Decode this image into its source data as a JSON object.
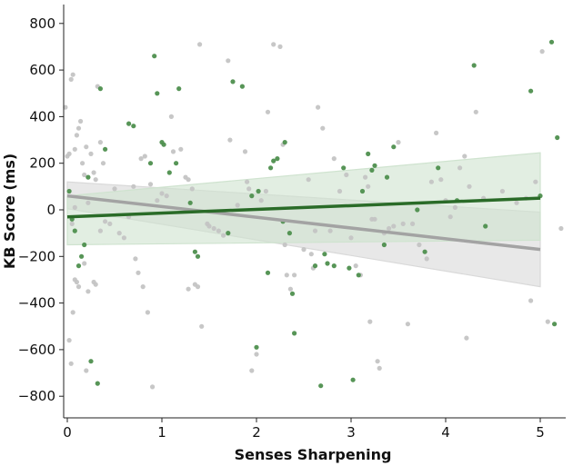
{
  "chart_data": {
    "type": "scatter",
    "title": "",
    "xlabel": "Senses Sharpening",
    "ylabel": "KB Score (ms)",
    "xlim": [
      -0.05,
      5.25
    ],
    "ylim": [
      -880,
      880
    ],
    "x_ticks": [
      0,
      1,
      2,
      3,
      4,
      5
    ],
    "y_ticks": [
      -800,
      -600,
      -400,
      -200,
      0,
      200,
      400,
      600,
      800
    ],
    "grid": false,
    "legend": "none",
    "series": [
      {
        "color": "#4e8f4e",
        "fit": {
          "x": [
            0,
            5
          ],
          "y": [
            -30,
            50
          ],
          "color": "#2a6b28",
          "ci_upper": [
            60,
            245
          ],
          "ci_lower": [
            -150,
            -130
          ],
          "band_color": "#cfe3cf"
        },
        "points": [
          [
            0.02,
            80
          ],
          [
            0.05,
            -40
          ],
          [
            0.08,
            -90
          ],
          [
            0.12,
            -240
          ],
          [
            0.15,
            -200
          ],
          [
            0.18,
            -150
          ],
          [
            0.22,
            140
          ],
          [
            0.25,
            -650
          ],
          [
            0.32,
            -745
          ],
          [
            0.35,
            520
          ],
          [
            0.4,
            260
          ],
          [
            0.65,
            370
          ],
          [
            0.7,
            360
          ],
          [
            0.88,
            200
          ],
          [
            0.92,
            660
          ],
          [
            0.95,
            500
          ],
          [
            1.0,
            290
          ],
          [
            1.02,
            280
          ],
          [
            1.08,
            160
          ],
          [
            1.15,
            200
          ],
          [
            1.18,
            520
          ],
          [
            1.3,
            30
          ],
          [
            1.35,
            -180
          ],
          [
            1.38,
            -200
          ],
          [
            1.7,
            -100
          ],
          [
            1.75,
            550
          ],
          [
            1.85,
            530
          ],
          [
            1.95,
            60
          ],
          [
            2.0,
            -590
          ],
          [
            2.02,
            80
          ],
          [
            2.12,
            -270
          ],
          [
            2.15,
            180
          ],
          [
            2.18,
            210
          ],
          [
            2.22,
            220
          ],
          [
            2.28,
            -50
          ],
          [
            2.3,
            290
          ],
          [
            2.35,
            -100
          ],
          [
            2.38,
            -360
          ],
          [
            2.4,
            -530
          ],
          [
            2.62,
            -240
          ],
          [
            2.68,
            -755
          ],
          [
            2.72,
            -190
          ],
          [
            2.75,
            -230
          ],
          [
            2.82,
            -240
          ],
          [
            2.92,
            180
          ],
          [
            2.98,
            -250
          ],
          [
            3.02,
            -730
          ],
          [
            3.08,
            -280
          ],
          [
            3.12,
            80
          ],
          [
            3.18,
            240
          ],
          [
            3.22,
            170
          ],
          [
            3.25,
            190
          ],
          [
            3.35,
            -150
          ],
          [
            3.38,
            140
          ],
          [
            3.45,
            270
          ],
          [
            3.7,
            0
          ],
          [
            3.78,
            -180
          ],
          [
            3.92,
            180
          ],
          [
            4.12,
            40
          ],
          [
            4.3,
            620
          ],
          [
            4.42,
            -70
          ],
          [
            4.9,
            510
          ],
          [
            5.12,
            720
          ],
          [
            5.18,
            310
          ],
          [
            5.15,
            -490
          ],
          [
            5.0,
            60
          ]
        ]
      },
      {
        "color": "#c4c4c4",
        "fit": {
          "x": [
            0,
            5
          ],
          "y": [
            60,
            -170
          ],
          "color": "#a3a3a3",
          "ci_upper": [
            120,
            -10
          ],
          "ci_lower": [
            5,
            -330
          ],
          "band_color": "#d9d9d9"
        },
        "points": [
          [
            -0.02,
            440
          ],
          [
            0.0,
            230
          ],
          [
            0.02,
            240
          ],
          [
            0.04,
            560
          ],
          [
            0.06,
            580
          ],
          [
            0.08,
            260
          ],
          [
            0.1,
            320
          ],
          [
            0.12,
            350
          ],
          [
            0.02,
            -560
          ],
          [
            0.04,
            -660
          ],
          [
            0.06,
            -440
          ],
          [
            0.08,
            -300
          ],
          [
            0.1,
            -310
          ],
          [
            0.12,
            -330
          ],
          [
            0.05,
            -60
          ],
          [
            0.08,
            10
          ],
          [
            0.14,
            380
          ],
          [
            0.16,
            200
          ],
          [
            0.18,
            150
          ],
          [
            0.2,
            270
          ],
          [
            0.22,
            30
          ],
          [
            0.25,
            240
          ],
          [
            0.28,
            160
          ],
          [
            0.3,
            130
          ],
          [
            0.32,
            530
          ],
          [
            0.35,
            290
          ],
          [
            0.38,
            200
          ],
          [
            0.2,
            -690
          ],
          [
            0.18,
            -230
          ],
          [
            0.22,
            -350
          ],
          [
            0.28,
            -310
          ],
          [
            0.3,
            -320
          ],
          [
            0.35,
            -90
          ],
          [
            0.4,
            -50
          ],
          [
            0.45,
            -60
          ],
          [
            0.5,
            90
          ],
          [
            0.55,
            -100
          ],
          [
            0.6,
            -120
          ],
          [
            0.65,
            -30
          ],
          [
            0.7,
            100
          ],
          [
            0.72,
            -210
          ],
          [
            0.75,
            -270
          ],
          [
            0.8,
            -330
          ],
          [
            0.85,
            -440
          ],
          [
            0.9,
            -760
          ],
          [
            0.78,
            220
          ],
          [
            0.82,
            230
          ],
          [
            0.88,
            110
          ],
          [
            0.95,
            40
          ],
          [
            1.0,
            70
          ],
          [
            1.05,
            60
          ],
          [
            1.1,
            400
          ],
          [
            1.12,
            250
          ],
          [
            1.2,
            260
          ],
          [
            1.25,
            140
          ],
          [
            1.28,
            130
          ],
          [
            1.32,
            90
          ],
          [
            1.35,
            -320
          ],
          [
            1.38,
            -330
          ],
          [
            1.42,
            -500
          ],
          [
            1.28,
            -340
          ],
          [
            1.4,
            710
          ],
          [
            1.48,
            -60
          ],
          [
            1.5,
            -70
          ],
          [
            1.55,
            -80
          ],
          [
            1.6,
            -90
          ],
          [
            1.65,
            -110
          ],
          [
            1.7,
            640
          ],
          [
            1.72,
            300
          ],
          [
            1.8,
            20
          ],
          [
            1.88,
            250
          ],
          [
            1.9,
            120
          ],
          [
            1.92,
            90
          ],
          [
            1.95,
            -690
          ],
          [
            2.0,
            -620
          ],
          [
            2.05,
            40
          ],
          [
            2.1,
            80
          ],
          [
            2.12,
            420
          ],
          [
            2.18,
            710
          ],
          [
            2.25,
            700
          ],
          [
            2.28,
            280
          ],
          [
            2.3,
            -150
          ],
          [
            2.32,
            -280
          ],
          [
            2.36,
            -340
          ],
          [
            2.4,
            -280
          ],
          [
            2.5,
            -170
          ],
          [
            2.55,
            130
          ],
          [
            2.58,
            -190
          ],
          [
            2.6,
            -250
          ],
          [
            2.62,
            -90
          ],
          [
            2.65,
            440
          ],
          [
            2.7,
            350
          ],
          [
            2.78,
            -90
          ],
          [
            2.82,
            220
          ],
          [
            2.88,
            80
          ],
          [
            2.95,
            150
          ],
          [
            3.0,
            -120
          ],
          [
            3.05,
            -240
          ],
          [
            3.1,
            -280
          ],
          [
            3.15,
            140
          ],
          [
            3.18,
            100
          ],
          [
            3.2,
            -480
          ],
          [
            3.22,
            -40
          ],
          [
            3.25,
            -40
          ],
          [
            3.28,
            -650
          ],
          [
            3.3,
            -680
          ],
          [
            3.35,
            -100
          ],
          [
            3.4,
            -80
          ],
          [
            3.45,
            -70
          ],
          [
            3.5,
            290
          ],
          [
            3.55,
            -60
          ],
          [
            3.6,
            -490
          ],
          [
            3.65,
            -60
          ],
          [
            3.72,
            -150
          ],
          [
            3.8,
            -210
          ],
          [
            3.85,
            120
          ],
          [
            3.9,
            330
          ],
          [
            3.95,
            130
          ],
          [
            4.0,
            40
          ],
          [
            4.05,
            -30
          ],
          [
            4.1,
            10
          ],
          [
            4.15,
            180
          ],
          [
            4.2,
            230
          ],
          [
            4.22,
            -550
          ],
          [
            4.25,
            100
          ],
          [
            4.32,
            420
          ],
          [
            4.4,
            50
          ],
          [
            4.6,
            80
          ],
          [
            4.75,
            30
          ],
          [
            4.85,
            50
          ],
          [
            4.9,
            -390
          ],
          [
            4.95,
            120
          ],
          [
            5.02,
            680
          ],
          [
            5.08,
            -480
          ],
          [
            5.22,
            -80
          ]
        ]
      }
    ]
  }
}
